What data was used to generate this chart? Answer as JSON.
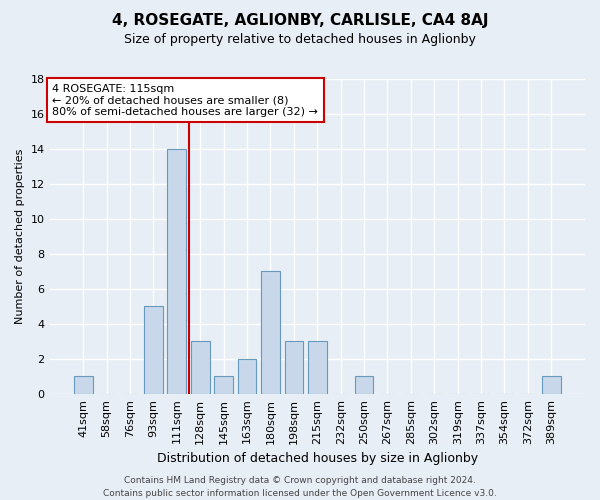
{
  "title": "4, ROSEGATE, AGLIONBY, CARLISLE, CA4 8AJ",
  "subtitle": "Size of property relative to detached houses in Aglionby",
  "xlabel": "Distribution of detached houses by size in Aglionby",
  "ylabel": "Number of detached properties",
  "footnote1": "Contains HM Land Registry data © Crown copyright and database right 2024.",
  "footnote2": "Contains public sector information licensed under the Open Government Licence v3.0.",
  "categories": [
    "41sqm",
    "58sqm",
    "76sqm",
    "93sqm",
    "111sqm",
    "128sqm",
    "145sqm",
    "163sqm",
    "180sqm",
    "198sqm",
    "215sqm",
    "232sqm",
    "250sqm",
    "267sqm",
    "285sqm",
    "302sqm",
    "319sqm",
    "337sqm",
    "354sqm",
    "372sqm",
    "389sqm"
  ],
  "values": [
    1,
    0,
    0,
    5,
    14,
    3,
    1,
    2,
    7,
    3,
    3,
    0,
    1,
    0,
    0,
    0,
    0,
    0,
    0,
    0,
    1
  ],
  "bar_color": "#c8d8ea",
  "bar_edge_color": "#6699bb",
  "vline_color": "#cc0000",
  "vline_x": 4.5,
  "ylim": [
    0,
    18
  ],
  "yticks": [
    0,
    2,
    4,
    6,
    8,
    10,
    12,
    14,
    16,
    18
  ],
  "annotation_title": "4 ROSEGATE: 115sqm",
  "annotation_line1": "← 20% of detached houses are smaller (8)",
  "annotation_line2": "80% of semi-detached houses are larger (32) →",
  "annotation_box_color": "#ffffff",
  "annotation_box_edge_color": "#cc0000",
  "bg_color": "#e8eef5",
  "plot_bg_color": "#e8eef5",
  "grid_color": "#ffffff",
  "title_fontsize": 11,
  "subtitle_fontsize": 9,
  "ylabel_fontsize": 8,
  "xlabel_fontsize": 9,
  "tick_fontsize": 8,
  "annot_fontsize": 8,
  "footer_fontsize": 6.5
}
